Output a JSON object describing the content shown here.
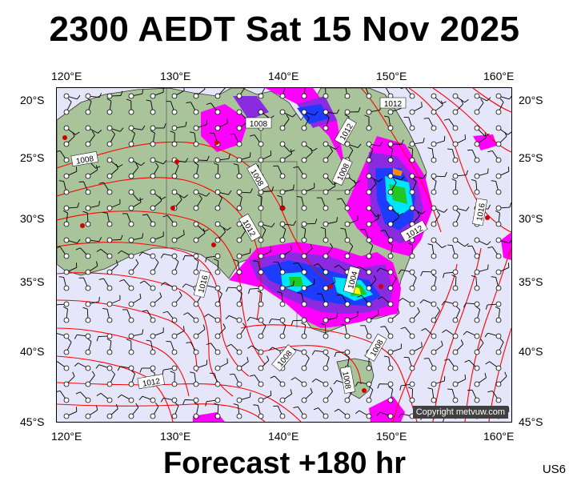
{
  "header": {
    "title": "2300 AEDT Sat 15 Nov 2025"
  },
  "footer": {
    "forecast": "Forecast +180 hr",
    "product_code": "US6"
  },
  "map": {
    "copyright": "Copyright metvuw.com",
    "lon_labels": [
      "120°E",
      "130°E",
      "140°E",
      "150°E",
      "160°E"
    ],
    "lat_labels": [
      "20°S",
      "25°S",
      "30°S",
      "35°S",
      "40°S",
      "45°S"
    ],
    "isobar_labels": [
      "1008",
      "1008",
      "1008",
      "1012",
      "1012",
      "1016",
      "1016",
      "1012",
      "1004",
      "1008",
      "1008",
      "1012",
      "1008",
      "1012",
      "1008"
    ],
    "colors": {
      "ocean": "#e6e6fa",
      "land": "#a9c49a",
      "isobar": "#ff0000",
      "rain_magenta": "#ff00ff",
      "rain_purple": "#8a2be2",
      "rain_blue": "#1e3cff",
      "rain_cyan": "#00e5ff",
      "rain_green": "#22c822",
      "rain_yellow": "#ffff00",
      "rain_orange": "#ff8c00"
    }
  }
}
